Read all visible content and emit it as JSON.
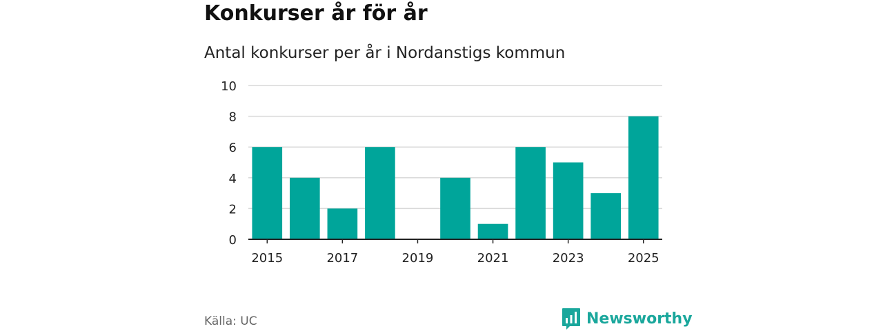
{
  "header": {
    "title": "Konkurser år för år",
    "subtitle": "Antal konkurser per år i Nordanstigs kommun"
  },
  "footer": {
    "source": "Källa: UC",
    "brand": "Newsworthy",
    "brand_icon": "bar-chart-speech-bubble-icon"
  },
  "colors": {
    "bar": "#00a59a",
    "grid": "#d9d9d9",
    "axis": "#222222",
    "brand": "#1aa79c"
  },
  "chart_data": {
    "type": "bar",
    "title": "Antal konkurser per år i Nordanstigs kommun",
    "xlabel": "",
    "ylabel": "",
    "categories": [
      "2015",
      "2016",
      "2017",
      "2018",
      "2019",
      "2020",
      "2021",
      "2022",
      "2023",
      "2024",
      "2025"
    ],
    "values": [
      6,
      4,
      2,
      6,
      0,
      4,
      1,
      6,
      5,
      3,
      8
    ],
    "x_tick_labels": [
      "2015",
      "2017",
      "2019",
      "2021",
      "2023",
      "2025"
    ],
    "y_ticks": [
      0,
      2,
      4,
      6,
      8,
      10
    ],
    "ylim": [
      0,
      10
    ],
    "grid": true,
    "legend": "none"
  }
}
